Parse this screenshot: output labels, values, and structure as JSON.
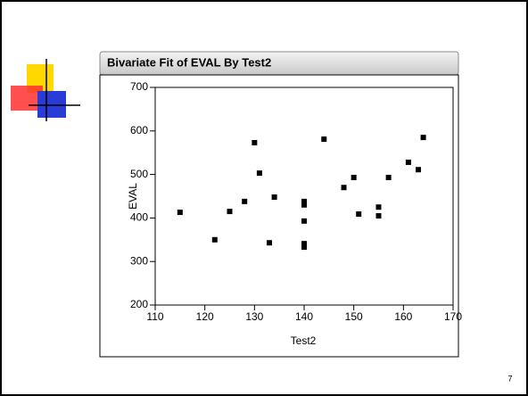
{
  "chart_data": {
    "type": "scatter",
    "title": "Bivariate Fit of EVAL By Test2",
    "x_label": "Test2",
    "y_label": "EVAL",
    "x": [
      115,
      122,
      125,
      128,
      130,
      131,
      134,
      133,
      140,
      140,
      140,
      140,
      140,
      144,
      148,
      150,
      151,
      155,
      155,
      157,
      161,
      163,
      164
    ],
    "y": [
      413,
      350,
      415,
      438,
      573,
      503,
      448,
      343,
      438,
      430,
      393,
      341,
      333,
      581,
      470,
      493,
      409,
      425,
      405,
      493,
      528,
      511,
      585
    ],
    "color": "#000000",
    "xlim": [
      110,
      170
    ],
    "xticks": [
      110,
      120,
      130,
      140,
      150,
      160,
      170
    ],
    "ylim": [
      200,
      700
    ],
    "yticks": [
      200,
      300,
      400,
      500,
      600,
      700
    ],
    "page_number": "7"
  }
}
